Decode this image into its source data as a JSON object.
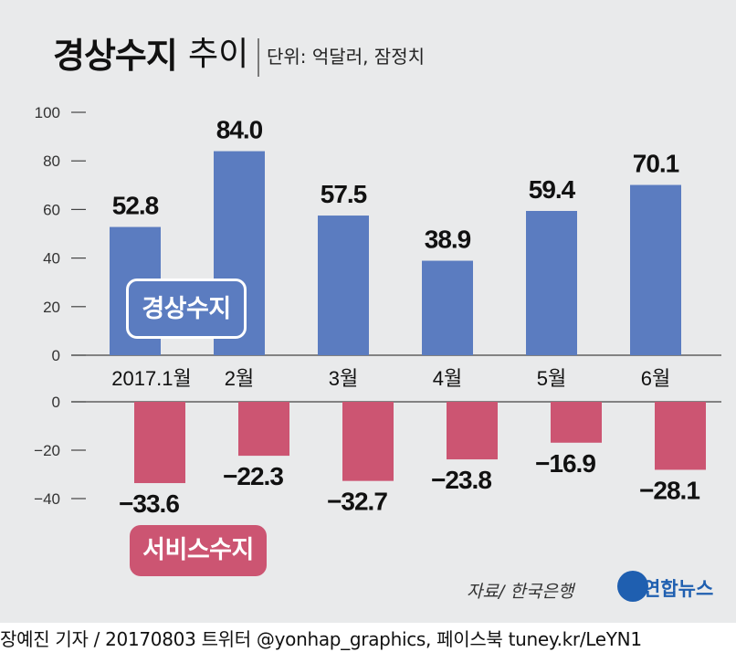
{
  "title": {
    "main": "경상수지",
    "sub": "추이",
    "unit": "단위: 억달러, 잠정치"
  },
  "colors": {
    "current_account": "#5b7cc0",
    "service_account": "#cc5572",
    "panel": "#e9eaeb",
    "axis": "#444444"
  },
  "legend": {
    "current_account": "경상수지",
    "service_account": "서비스수지"
  },
  "source": "자료/ 한국은행",
  "logo": {
    "text": "연합뉴스"
  },
  "credit": "장예진 기자 / 20170803 트위터 @yonhap_graphics, 페이스북 tuney.kr/LeYN1",
  "chart_data": [
    {
      "type": "bar",
      "title": "경상수지 추이",
      "series_name": "경상수지",
      "categories": [
        "2017.1월",
        "2월",
        "3월",
        "4월",
        "5월",
        "6월"
      ],
      "values": [
        52.8,
        84.0,
        57.5,
        38.9,
        59.4,
        70.1
      ],
      "value_labels": [
        "52.8",
        "84.0",
        "57.5",
        "38.9",
        "59.4",
        "70.1"
      ],
      "yticks": [
        0,
        20,
        40,
        60,
        80,
        100
      ],
      "ytick_labels": [
        "0",
        "20",
        "40",
        "60",
        "80",
        "100"
      ],
      "ylim": [
        0,
        100
      ]
    },
    {
      "type": "bar",
      "series_name": "서비스수지",
      "categories": [
        "2017.1월",
        "2월",
        "3월",
        "4월",
        "5월",
        "6월"
      ],
      "values": [
        -33.6,
        -22.3,
        -32.7,
        -23.8,
        -16.9,
        -28.1
      ],
      "value_labels": [
        "−33.6",
        "−22.3",
        "−32.7",
        "−23.8",
        "−16.9",
        "−28.1"
      ],
      "yticks": [
        0,
        -20,
        -40
      ],
      "ytick_labels": [
        "0",
        "−20",
        "−40"
      ],
      "ylim": [
        -40,
        0
      ]
    }
  ]
}
